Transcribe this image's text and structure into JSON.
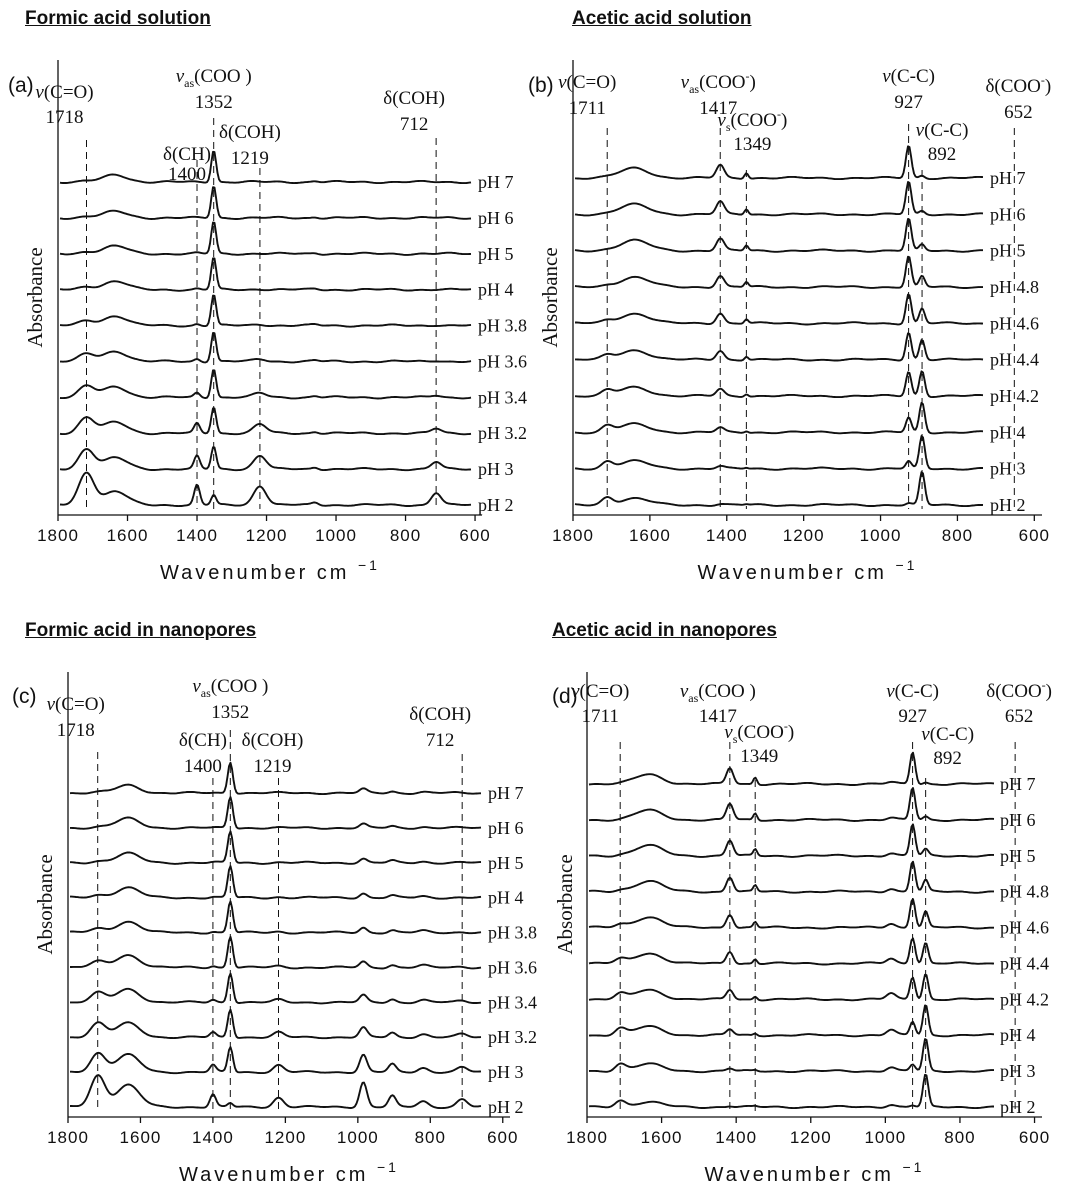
{
  "headings": [
    "Formic acid solution",
    "Acetic acid solution",
    "Formic acid in nanopores",
    "Acetic acid in nanopores"
  ],
  "chart_data": [
    {
      "type": "line",
      "panel": "(a)",
      "heading": "Formic acid solution",
      "xlabel": "Wavenumber cm",
      "xlabel_exponent": "−1",
      "ylabel": "Absorbance",
      "xlim": [
        1800,
        580
      ],
      "xticks": [
        1800,
        1600,
        1400,
        1200,
        1000,
        800,
        600
      ],
      "series": [
        {
          "name": "pH 7"
        },
        {
          "name": "pH 6"
        },
        {
          "name": "pH 5"
        },
        {
          "name": "pH 4"
        },
        {
          "name": "pH 3.8"
        },
        {
          "name": "pH 3.6"
        },
        {
          "name": "pH 3.4"
        },
        {
          "name": "pH 3.2"
        },
        {
          "name": "pH 3"
        },
        {
          "name": "pH 2"
        }
      ],
      "peaks": [
        {
          "pos": 1718,
          "h": [
            0.02,
            0.04,
            0.06,
            0.09,
            0.14,
            0.22,
            0.34,
            0.48,
            0.62,
            1.0
          ],
          "w": 22
        },
        {
          "pos": 1635,
          "h": [
            0.22,
            0.2,
            0.24,
            0.26,
            0.3,
            0.32,
            0.33,
            0.34,
            0.35,
            0.42
          ],
          "w": 34
        },
        {
          "pos": 1400,
          "h": [
            0.0,
            0.0,
            0.02,
            0.03,
            0.05,
            0.08,
            0.14,
            0.3,
            0.4,
            0.62
          ],
          "w": 8
        },
        {
          "pos": 1352,
          "h": [
            1.0,
            1.0,
            1.0,
            1.0,
            0.97,
            0.94,
            0.9,
            0.82,
            0.7,
            0.3
          ],
          "w": 7
        },
        {
          "pos": 1219,
          "h": [
            0.0,
            0.0,
            0.01,
            0.02,
            0.04,
            0.07,
            0.13,
            0.28,
            0.42,
            0.6
          ],
          "w": 18
        },
        {
          "pos": 1060,
          "h": [
            0.03,
            0.03,
            0.03,
            0.03,
            0.03,
            0.03,
            0.04,
            0.05,
            0.06,
            0.08
          ],
          "w": 10
        },
        {
          "pos": 712,
          "h": [
            0.0,
            0.0,
            0.0,
            0.01,
            0.02,
            0.03,
            0.06,
            0.14,
            0.22,
            0.38
          ],
          "w": 14
        }
      ],
      "annotations": [
        {
          "label": "v(C=O)",
          "value": "1718",
          "x": 1718
        },
        {
          "label": "δ(CH)",
          "value": "1400",
          "x": 1400
        },
        {
          "label": "v",
          "sub": "as",
          "tail": "(COO )",
          "value": "1352",
          "x": 1352
        },
        {
          "label": "δ(COH)",
          "value": "1219",
          "x": 1219
        },
        {
          "label": "δ(COH)",
          "value": "712",
          "x": 712
        }
      ]
    },
    {
      "type": "line",
      "panel": "(b)",
      "heading": "Acetic acid solution",
      "xlabel": "Wavenumber cm",
      "xlabel_exponent": "−1",
      "ylabel": "Absorbance",
      "xlim": [
        1800,
        580
      ],
      "xticks": [
        1800,
        1600,
        1400,
        1200,
        1000,
        800,
        600
      ],
      "series": [
        {
          "name": "pH 7"
        },
        {
          "name": "pH 6"
        },
        {
          "name": "pH 5"
        },
        {
          "name": "pH 4.8"
        },
        {
          "name": "pH 4.6"
        },
        {
          "name": "pH 4.4"
        },
        {
          "name": "pH 4.2"
        },
        {
          "name": "pH 4"
        },
        {
          "name": "pH 3"
        },
        {
          "name": "pH 2"
        }
      ],
      "peaks": [
        {
          "pos": 1711,
          "h": [
            0.0,
            0.0,
            0.01,
            0.03,
            0.06,
            0.1,
            0.14,
            0.18,
            0.2,
            0.22
          ],
          "w": 14
        },
        {
          "pos": 1640,
          "h": [
            0.3,
            0.3,
            0.31,
            0.3,
            0.3,
            0.29,
            0.27,
            0.25,
            0.23,
            0.2
          ],
          "w": 38
        },
        {
          "pos": 1417,
          "h": [
            0.4,
            0.39,
            0.37,
            0.35,
            0.32,
            0.28,
            0.22,
            0.14,
            0.07,
            0.03
          ],
          "w": 10
        },
        {
          "pos": 1349,
          "h": [
            0.18,
            0.17,
            0.16,
            0.15,
            0.13,
            0.11,
            0.08,
            0.05,
            0.03,
            0.02
          ],
          "w": 5
        },
        {
          "pos": 927,
          "h": [
            1.0,
            1.0,
            0.98,
            0.95,
            0.92,
            0.85,
            0.75,
            0.45,
            0.22,
            0.05
          ],
          "w": 7
        },
        {
          "pos": 892,
          "h": [
            0.08,
            0.1,
            0.18,
            0.32,
            0.45,
            0.62,
            0.78,
            0.92,
            1.0,
            1.0
          ],
          "w": 7
        },
        {
          "pos": 652,
          "h": [
            0.08,
            0.08,
            0.09,
            0.09,
            0.09,
            0.09,
            0.08,
            0.08,
            0.07,
            0.06
          ],
          "w": 8
        },
        {
          "pos": 610,
          "h": [
            0.05,
            0.05,
            0.05,
            0.05,
            0.06,
            0.06,
            0.07,
            0.07,
            0.08,
            0.1
          ],
          "w": 12
        }
      ],
      "annotations": [
        {
          "label": "v(C=O)",
          "value": "1711",
          "x": 1711
        },
        {
          "label": "v",
          "sub": "as",
          "tail": "(COO",
          "sup": "-",
          "tail2": ")",
          "value": "1417",
          "x": 1417
        },
        {
          "label": "v",
          "sub": "s",
          "tail": "(COO",
          "sup": "-",
          "tail2": ")",
          "value": "1349",
          "x": 1349
        },
        {
          "label": "v(C-C)",
          "value": "927",
          "x": 927
        },
        {
          "label": "v(C-C)",
          "value": "892",
          "x": 892
        },
        {
          "label": "δ(COO",
          "sup": "-",
          "tail2": ")",
          "value": "652",
          "x": 652
        }
      ]
    },
    {
      "type": "line",
      "panel": "(c)",
      "heading": "Formic acid in nanopores",
      "xlabel": "Wavenumber cm",
      "xlabel_exponent": "−1",
      "ylabel": "Absorbance",
      "xlim": [
        1800,
        580
      ],
      "xticks": [
        1800,
        1600,
        1400,
        1200,
        1000,
        800,
        600
      ],
      "series": [
        {
          "name": "pH 7"
        },
        {
          "name": "pH 6"
        },
        {
          "name": "pH 5"
        },
        {
          "name": "pH 4"
        },
        {
          "name": "pH 3.8"
        },
        {
          "name": "pH 3.6"
        },
        {
          "name": "pH 3.4"
        },
        {
          "name": "pH 3.2"
        },
        {
          "name": "pH 3"
        },
        {
          "name": "pH 2"
        }
      ],
      "peaks": [
        {
          "pos": 1718,
          "h": [
            0.02,
            0.03,
            0.05,
            0.08,
            0.12,
            0.18,
            0.3,
            0.45,
            0.6,
            1.0
          ],
          "w": 20
        },
        {
          "pos": 1635,
          "h": [
            0.25,
            0.3,
            0.3,
            0.32,
            0.35,
            0.4,
            0.42,
            0.45,
            0.55,
            0.7
          ],
          "w": 32
        },
        {
          "pos": 1400,
          "h": [
            0.0,
            0.0,
            0.01,
            0.02,
            0.03,
            0.05,
            0.08,
            0.15,
            0.22,
            0.4
          ],
          "w": 8
        },
        {
          "pos": 1352,
          "h": [
            1.0,
            1.0,
            1.0,
            1.0,
            1.0,
            1.0,
            0.95,
            0.9,
            0.8,
            0.12
          ],
          "w": 7
        },
        {
          "pos": 1219,
          "h": [
            0.0,
            0.0,
            0.01,
            0.02,
            0.03,
            0.04,
            0.08,
            0.15,
            0.22,
            0.3
          ],
          "w": 14
        },
        {
          "pos": 985,
          "h": [
            0.12,
            0.12,
            0.13,
            0.14,
            0.16,
            0.18,
            0.22,
            0.3,
            0.55,
            0.8
          ],
          "w": 10
        },
        {
          "pos": 905,
          "h": [
            0.05,
            0.05,
            0.06,
            0.06,
            0.07,
            0.08,
            0.1,
            0.14,
            0.25,
            0.35
          ],
          "w": 10
        },
        {
          "pos": 820,
          "h": [
            0.03,
            0.03,
            0.04,
            0.04,
            0.05,
            0.06,
            0.07,
            0.1,
            0.14,
            0.18
          ],
          "w": 14
        },
        {
          "pos": 712,
          "h": [
            0.0,
            0.0,
            0.01,
            0.01,
            0.02,
            0.03,
            0.05,
            0.1,
            0.15,
            0.25
          ],
          "w": 14
        }
      ],
      "annotations": [
        {
          "label": "v(C=O)",
          "value": "1718",
          "x": 1718
        },
        {
          "label": "δ(CH)",
          "value": "1400",
          "x": 1400
        },
        {
          "label": "v",
          "sub": "as",
          "tail": "(COO )",
          "value": "1352",
          "x": 1352
        },
        {
          "label": "δ(COH)",
          "value": "1219",
          "x": 1219
        },
        {
          "label": "δ(COH)",
          "value": "712",
          "x": 712
        }
      ]
    },
    {
      "type": "line",
      "panel": "(d)",
      "heading": "Acetic acid in nanopores",
      "xlabel": "Wavenumber cm",
      "xlabel_exponent": "−1",
      "ylabel": "Absorbance",
      "xlim": [
        1800,
        580
      ],
      "xticks": [
        1800,
        1600,
        1400,
        1200,
        1000,
        800,
        600
      ],
      "series": [
        {
          "name": "pH 7"
        },
        {
          "name": "pH 6"
        },
        {
          "name": "pH 5"
        },
        {
          "name": "pH 4.8"
        },
        {
          "name": "pH 4.6"
        },
        {
          "name": "pH 4.4"
        },
        {
          "name": "pH 4.2"
        },
        {
          "name": "pH 4"
        },
        {
          "name": "pH 3"
        },
        {
          "name": "pH 2"
        }
      ],
      "peaks": [
        {
          "pos": 1711,
          "h": [
            0.0,
            0.0,
            0.02,
            0.04,
            0.08,
            0.12,
            0.16,
            0.2,
            0.22,
            0.2
          ],
          "w": 14
        },
        {
          "pos": 1635,
          "h": [
            0.3,
            0.3,
            0.32,
            0.33,
            0.33,
            0.32,
            0.3,
            0.27,
            0.22,
            0.15
          ],
          "w": 36
        },
        {
          "pos": 1417,
          "h": [
            0.5,
            0.5,
            0.48,
            0.46,
            0.42,
            0.38,
            0.3,
            0.18,
            0.08,
            0.03
          ],
          "w": 9
        },
        {
          "pos": 1349,
          "h": [
            0.22,
            0.21,
            0.2,
            0.19,
            0.17,
            0.14,
            0.1,
            0.06,
            0.03,
            0.02
          ],
          "w": 5
        },
        {
          "pos": 985,
          "h": [
            0.05,
            0.06,
            0.08,
            0.1,
            0.13,
            0.15,
            0.18,
            0.16,
            0.12,
            0.08
          ],
          "w": 12
        },
        {
          "pos": 927,
          "h": [
            1.0,
            1.0,
            0.98,
            0.95,
            0.92,
            0.82,
            0.7,
            0.42,
            0.2,
            0.05
          ],
          "w": 7
        },
        {
          "pos": 892,
          "h": [
            0.05,
            0.1,
            0.2,
            0.35,
            0.5,
            0.65,
            0.8,
            0.95,
            1.0,
            1.0
          ],
          "w": 7
        },
        {
          "pos": 652,
          "h": [
            0.1,
            0.1,
            0.1,
            0.1,
            0.1,
            0.1,
            0.09,
            0.09,
            0.08,
            0.07
          ],
          "w": 9
        },
        {
          "pos": 605,
          "h": [
            0.05,
            0.05,
            0.05,
            0.06,
            0.06,
            0.07,
            0.07,
            0.08,
            0.12,
            0.22
          ],
          "w": 14
        }
      ],
      "annotations": [
        {
          "label": "v(C=O)",
          "value": "1711",
          "x": 1711
        },
        {
          "label": "v",
          "sub": "as",
          "tail": "(COO )",
          "value": "1417",
          "x": 1417
        },
        {
          "label": "v",
          "sub": "s",
          "tail": "(COO",
          "sup": "-",
          "tail2": ")",
          "value": "1349",
          "x": 1349
        },
        {
          "label": "v(C-C)",
          "value": "927",
          "x": 927
        },
        {
          "label": "v(C-C)",
          "value": "892",
          "x": 892
        },
        {
          "label": "δ(COO",
          "sup": "-",
          "tail2": ")",
          "value": "652",
          "x": 652
        }
      ]
    }
  ]
}
